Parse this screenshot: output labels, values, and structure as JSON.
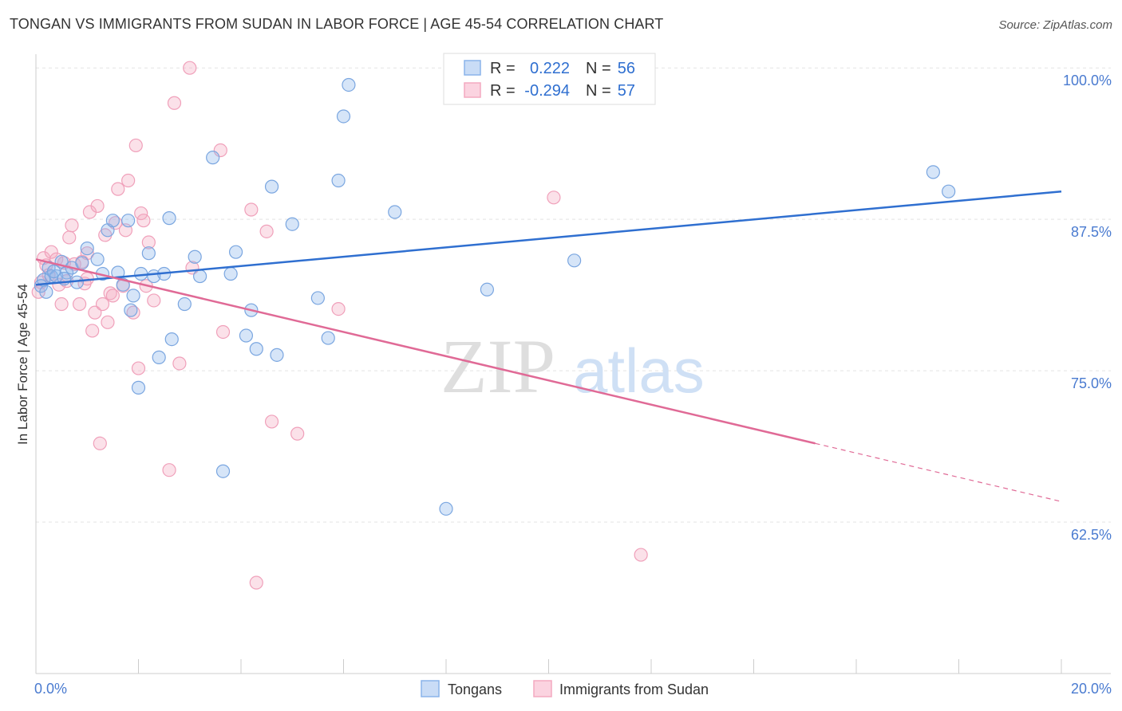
{
  "header": {
    "title": "TONGAN VS IMMIGRANTS FROM SUDAN IN LABOR FORCE | AGE 45-54 CORRELATION CHART",
    "source": "Source: ZipAtlas.com"
  },
  "watermark": {
    "zip": "ZIP",
    "atlas": "atlas"
  },
  "legend_box": {
    "rows": [
      {
        "r_label": "R =",
        "r_value": "0.222",
        "n_label": "N =",
        "n_value": "56"
      },
      {
        "r_label": "R =",
        "r_value": "-0.294",
        "n_label": "N =",
        "n_value": "57"
      }
    ]
  },
  "bottom_legend": {
    "items": [
      {
        "label": "Tongans"
      },
      {
        "label": "Immigrants from Sudan"
      }
    ]
  },
  "chart_data": {
    "type": "scatter",
    "title": "TONGAN VS IMMIGRANTS FROM SUDAN IN LABOR FORCE | AGE 45-54 CORRELATION CHART",
    "ylabel": "In Labor Force | Age 45-54",
    "xlabel": "",
    "xlim": [
      0,
      20
    ],
    "ylim": [
      50,
      101
    ],
    "x_tick_labels": [
      {
        "value": 0,
        "label": "0.0%"
      },
      {
        "value": 20,
        "label": "20.0%"
      }
    ],
    "y_tick_labels": [
      {
        "value": 100,
        "label": "100.0%"
      },
      {
        "value": 87.5,
        "label": "87.5%"
      },
      {
        "value": 75,
        "label": "75.0%"
      },
      {
        "value": 62.5,
        "label": "62.5%"
      }
    ],
    "grid": true,
    "legend_position": "top-center",
    "colors": {
      "tongans": "#8ab4ea",
      "sudan": "#f4a9c0",
      "tongans_line": "#2f6fd0",
      "sudan_line": "#e06a96"
    },
    "series": [
      {
        "name": "Tongans",
        "R": 0.222,
        "N": 56,
        "trend": {
          "x": [
            0,
            20
          ],
          "y": [
            82.1,
            89.8
          ]
        },
        "points": [
          [
            0.15,
            82.5
          ],
          [
            0.25,
            83.5
          ],
          [
            0.3,
            82.8
          ],
          [
            0.4,
            82.8
          ],
          [
            0.5,
            84.0
          ],
          [
            0.6,
            83.1
          ],
          [
            0.7,
            83.5
          ],
          [
            0.8,
            82.3
          ],
          [
            0.9,
            83.9
          ],
          [
            1.0,
            85.1
          ],
          [
            1.2,
            84.2
          ],
          [
            1.3,
            83.0
          ],
          [
            1.4,
            86.6
          ],
          [
            1.5,
            87.4
          ],
          [
            1.6,
            83.1
          ],
          [
            1.7,
            82.1
          ],
          [
            1.8,
            87.4
          ],
          [
            1.85,
            80.0
          ],
          [
            1.9,
            81.2
          ],
          [
            2.0,
            73.6
          ],
          [
            2.05,
            83.0
          ],
          [
            2.2,
            84.7
          ],
          [
            2.3,
            82.8
          ],
          [
            2.4,
            76.1
          ],
          [
            2.5,
            83.0
          ],
          [
            2.6,
            87.6
          ],
          [
            2.65,
            77.6
          ],
          [
            2.9,
            80.5
          ],
          [
            3.1,
            84.4
          ],
          [
            3.2,
            82.8
          ],
          [
            3.45,
            92.6
          ],
          [
            3.65,
            66.7
          ],
          [
            3.8,
            83.0
          ],
          [
            3.9,
            84.8
          ],
          [
            4.1,
            77.9
          ],
          [
            4.2,
            80.0
          ],
          [
            4.3,
            76.8
          ],
          [
            4.6,
            90.2
          ],
          [
            4.7,
            76.3
          ],
          [
            5.0,
            87.1
          ],
          [
            5.5,
            81.0
          ],
          [
            5.7,
            77.7
          ],
          [
            5.9,
            90.7
          ],
          [
            6.0,
            96.0
          ],
          [
            6.1,
            98.6
          ],
          [
            7.0,
            88.1
          ],
          [
            8.0,
            63.6
          ],
          [
            8.2,
            97.8
          ],
          [
            8.8,
            81.7
          ],
          [
            10.5,
            84.1
          ],
          [
            17.5,
            91.4
          ],
          [
            17.8,
            89.8
          ],
          [
            0.1,
            82.0
          ],
          [
            0.2,
            81.5
          ],
          [
            0.35,
            83.2
          ],
          [
            0.55,
            82.6
          ]
        ]
      },
      {
        "name": "Immigrants from Sudan",
        "R": -0.294,
        "N": 57,
        "trend": {
          "x": [
            0,
            15.2
          ],
          "y": [
            84.2,
            69.0
          ]
        },
        "trend_dashed": {
          "x": [
            15.2,
            20
          ],
          "y": [
            69.0,
            64.2
          ]
        },
        "points": [
          [
            0.05,
            81.5
          ],
          [
            0.1,
            82.3
          ],
          [
            0.15,
            84.3
          ],
          [
            0.2,
            83.7
          ],
          [
            0.3,
            84.8
          ],
          [
            0.4,
            84.2
          ],
          [
            0.45,
            82.1
          ],
          [
            0.5,
            80.5
          ],
          [
            0.6,
            82.4
          ],
          [
            0.65,
            86.0
          ],
          [
            0.7,
            87.0
          ],
          [
            0.75,
            83.8
          ],
          [
            0.85,
            80.5
          ],
          [
            0.9,
            84.0
          ],
          [
            0.95,
            82.2
          ],
          [
            1.0,
            84.7
          ],
          [
            1.05,
            88.1
          ],
          [
            1.1,
            78.3
          ],
          [
            1.15,
            79.8
          ],
          [
            1.2,
            88.6
          ],
          [
            1.25,
            69.0
          ],
          [
            1.3,
            80.5
          ],
          [
            1.35,
            86.2
          ],
          [
            1.4,
            79.0
          ],
          [
            1.45,
            81.4
          ],
          [
            1.5,
            81.2
          ],
          [
            1.55,
            87.2
          ],
          [
            1.6,
            90.0
          ],
          [
            1.7,
            82.0
          ],
          [
            1.75,
            86.6
          ],
          [
            1.8,
            90.7
          ],
          [
            1.9,
            79.8
          ],
          [
            1.95,
            93.6
          ],
          [
            2.0,
            75.2
          ],
          [
            2.05,
            88.0
          ],
          [
            2.1,
            87.4
          ],
          [
            2.15,
            82.0
          ],
          [
            2.2,
            85.6
          ],
          [
            2.3,
            80.8
          ],
          [
            2.6,
            66.8
          ],
          [
            2.7,
            97.1
          ],
          [
            2.8,
            75.6
          ],
          [
            3.0,
            100.0
          ],
          [
            3.05,
            83.5
          ],
          [
            3.6,
            93.2
          ],
          [
            3.65,
            78.2
          ],
          [
            4.2,
            88.3
          ],
          [
            4.3,
            57.5
          ],
          [
            4.5,
            86.5
          ],
          [
            4.6,
            70.8
          ],
          [
            5.1,
            69.8
          ],
          [
            5.9,
            80.1
          ],
          [
            10.1,
            89.3
          ],
          [
            11.8,
            59.8
          ],
          [
            0.25,
            82.9
          ],
          [
            0.55,
            83.9
          ],
          [
            1.0,
            82.6
          ]
        ]
      }
    ]
  }
}
